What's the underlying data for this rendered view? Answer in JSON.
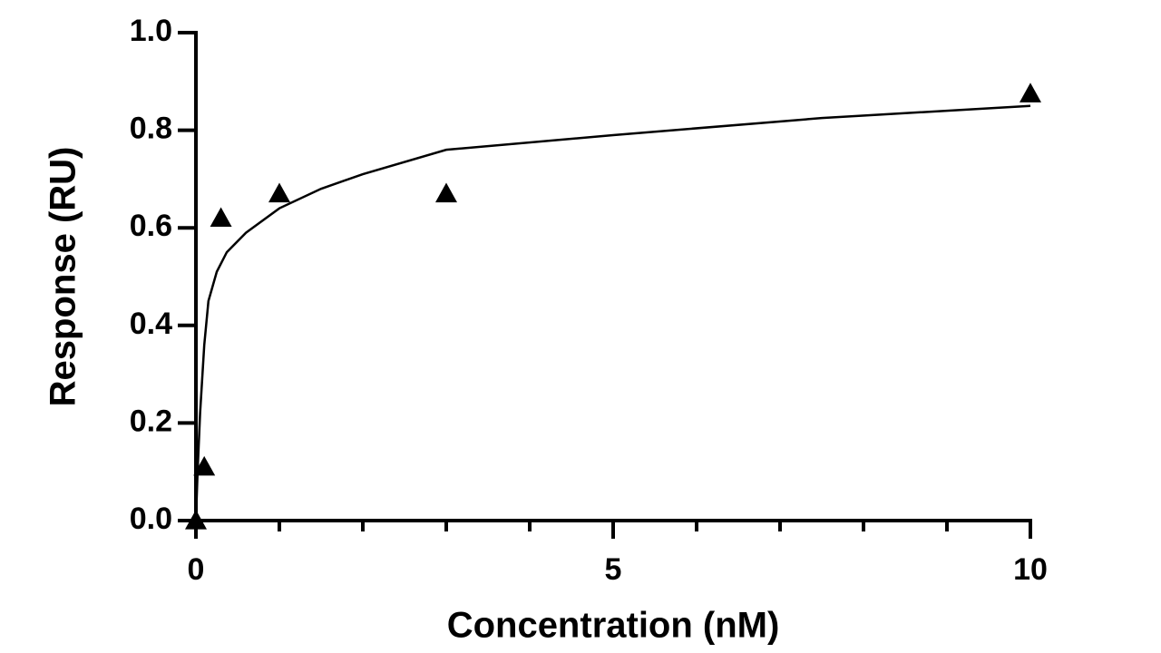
{
  "chart_data": {
    "type": "scatter",
    "x_label": "Concentration (nM)",
    "y_label": "Response (RU)",
    "xlim": [
      0,
      10
    ],
    "ylim": [
      0,
      1
    ],
    "xticks": [
      0,
      5,
      10
    ],
    "xminor_ticks": [
      1,
      2,
      3,
      4,
      6,
      7,
      8,
      9
    ],
    "yticks": [
      {
        "value": 0,
        "label": "0.0"
      },
      0.2,
      0.4,
      0.6,
      0.8,
      {
        "value": 1,
        "label": "1.0"
      }
    ],
    "series": [
      {
        "marker": "triangle",
        "color": "#000000",
        "x": [
          0,
          0.1,
          0.3,
          1,
          3,
          10
        ],
        "values": [
          0,
          0.11,
          0.62,
          0.67,
          0.67,
          0.875
        ]
      },
      {
        "line": "fit",
        "color": "#000000",
        "x": [
          0,
          0.02,
          0.05,
          0.1,
          0.15,
          0.25,
          0.37,
          0.6,
          1,
          1.5,
          2,
          3,
          5,
          7.5,
          10
        ],
        "values": [
          0,
          0.1,
          0.22,
          0.36,
          0.45,
          0.51,
          0.55,
          0.59,
          0.64,
          0.68,
          0.71,
          0.76,
          0.79,
          0.825,
          0.85
        ]
      }
    ]
  }
}
